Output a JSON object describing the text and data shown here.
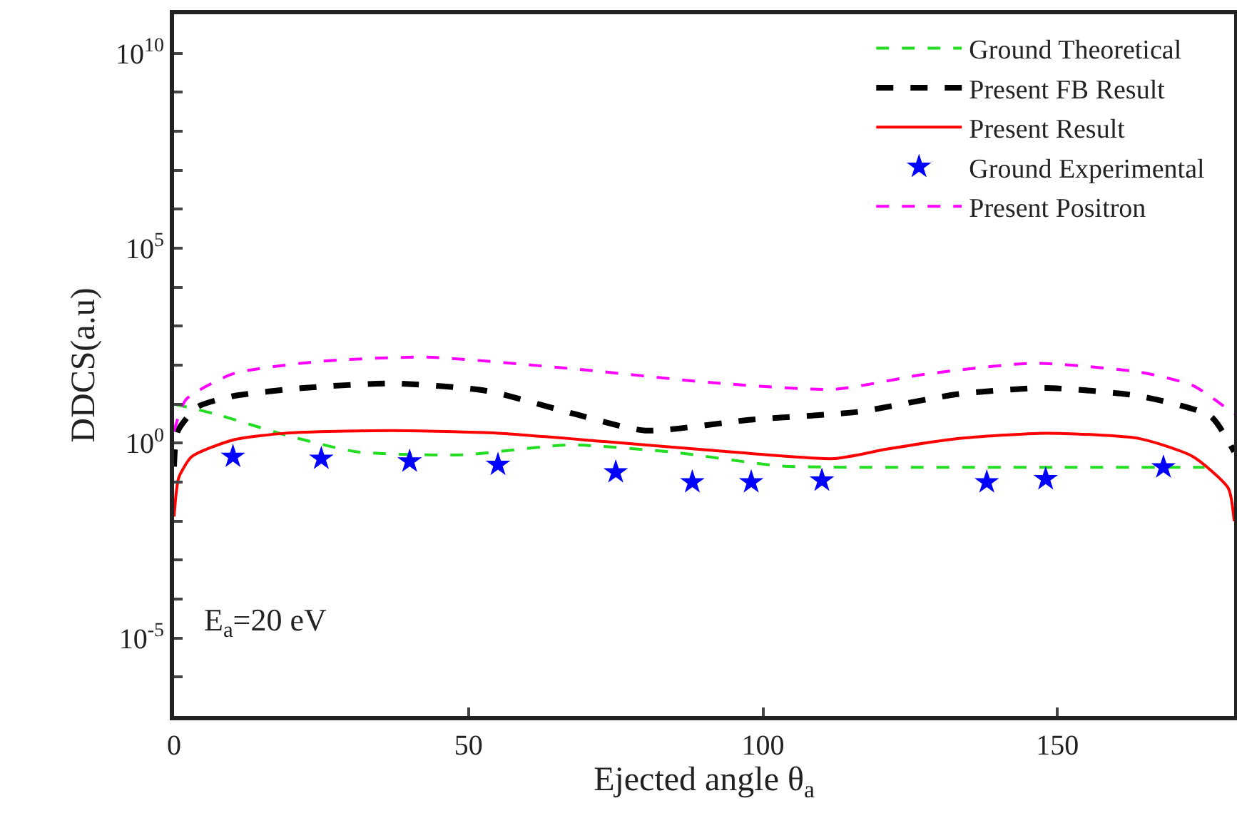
{
  "chart_data": {
    "type": "line",
    "xlabel": "Ejected angle θ$_{a}$",
    "ylabel": "DDCS(a.u)",
    "log": "y",
    "xlim": [
      0,
      180
    ],
    "xticks": [
      0,
      50,
      100,
      150
    ],
    "ylim": [
      1e-07,
      100000000000.0
    ],
    "yticks": [
      {
        "value": 1e-07,
        "label": null
      },
      {
        "value": 1e-06,
        "label": null
      },
      {
        "value": 1e-05,
        "label": "10$^{-5}$"
      },
      {
        "value": 0.0001,
        "label": null
      },
      {
        "value": 0.001,
        "label": null
      },
      {
        "value": 0.01,
        "label": null
      },
      {
        "value": 0.1,
        "label": null
      },
      {
        "value": 1,
        "label": "10$^{0}$"
      },
      {
        "value": 10,
        "label": null
      },
      {
        "value": 100,
        "label": null
      },
      {
        "value": 1000,
        "label": null
      },
      {
        "value": 10000,
        "label": null
      },
      {
        "value": 100000,
        "label": "10$^{5}$"
      },
      {
        "value": 1000000.0,
        "label": null
      },
      {
        "value": 10000000.0,
        "label": null
      },
      {
        "value": 100000000.0,
        "label": null
      },
      {
        "value": 1000000000.0,
        "label": null
      },
      {
        "value": 10000000000.0,
        "label": "10$^{10}$"
      }
    ],
    "grid": false,
    "legend": "top right",
    "annotations": [
      "E$_{a}$=20 eV"
    ],
    "series": [
      {
        "name": "Ground Theoretical",
        "color": "#22dd22",
        "line_style": "dashed",
        "x": [
          0,
          7,
          19,
          31,
          49,
          67,
          85,
          103,
          127,
          151,
          175
        ],
        "values": [
          10,
          5.6,
          1.6,
          0.6,
          0.5,
          0.9,
          0.58,
          0.26,
          0.24,
          0.24,
          0.24
        ]
      },
      {
        "name": "Present FB Result",
        "color": "#000000",
        "line_style": "dashed",
        "x": [
          0,
          0.6,
          4,
          10,
          22,
          37,
          53,
          68,
          80,
          98,
          116,
          133,
          148,
          164,
          176,
          180
        ],
        "values": [
          0.25,
          2,
          8.5,
          16,
          26,
          34,
          22,
          5.6,
          2.1,
          4,
          6.3,
          18,
          26,
          16,
          4.9,
          0.6
        ]
      },
      {
        "name": "Present Result",
        "color": "#ff0000",
        "line_style": "solid",
        "x": [
          0,
          0.8,
          3,
          10,
          19,
          37,
          55,
          73,
          91,
          112,
          121,
          133,
          148,
          164,
          173,
          179,
          180
        ],
        "values": [
          0.013,
          0.13,
          0.45,
          1.2,
          1.8,
          2.1,
          1.8,
          1.1,
          0.66,
          0.4,
          0.7,
          1.3,
          1.8,
          1.3,
          0.45,
          0.07,
          0.01
        ]
      },
      {
        "name": "Ground Experimental",
        "color": "#0000ff",
        "type": "scatter",
        "marker": "star",
        "x": [
          10,
          25,
          40,
          55,
          75,
          88,
          98,
          110,
          138,
          148,
          168
        ],
        "values": [
          0.45,
          0.4,
          0.34,
          0.28,
          0.18,
          0.1,
          0.1,
          0.11,
          0.1,
          0.12,
          0.24
        ]
      },
      {
        "name": "Present Positron",
        "color": "#ff00ff",
        "line_style": "dashed",
        "x": [
          0,
          2,
          10,
          25,
          43,
          68,
          91,
          112,
          128,
          146,
          164,
          173,
          180
        ],
        "values": [
          2,
          13,
          60,
          126,
          160,
          80,
          36,
          24,
          60,
          112,
          66,
          30,
          5.6
        ]
      }
    ]
  }
}
